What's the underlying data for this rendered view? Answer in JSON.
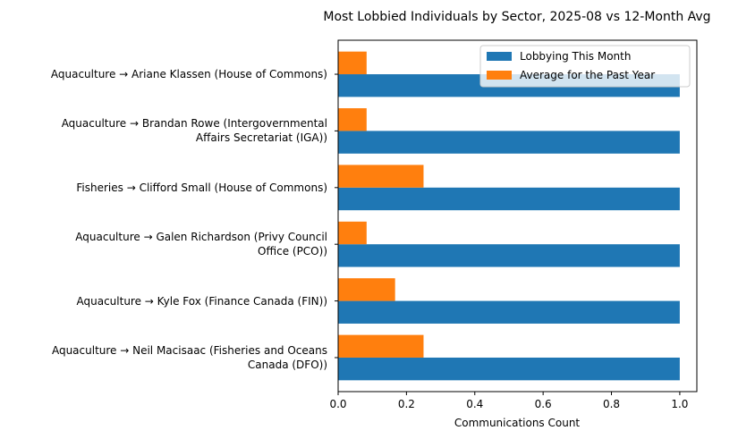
{
  "chart_data": {
    "type": "barh",
    "title": "Most Lobbied Individuals by Sector, 2025-08 vs 12-Month Avg",
    "x_label": "Communications Count",
    "categories": [
      "Aquaculture → Ariane Klassen (House of Commons)",
      "Aquaculture → Brandan Rowe (Intergovernmental\nAffairs Secretariat (IGA))",
      "Fisheries → Clifford Small (House of Commons)",
      "Aquaculture → Galen Richardson (Privy Council\nOffice (PCO))",
      "Aquaculture → Kyle Fox (Finance Canada (FIN))",
      "Aquaculture → Neil Macisaac (Fisheries and Oceans\nCanada (DFO))"
    ],
    "series": [
      {
        "name": "Lobbying This Month",
        "color": "#1f77b4",
        "values": [
          1,
          1,
          1,
          1,
          1,
          1
        ]
      },
      {
        "name": "Average for the Past Year",
        "color": "#ff7f0e",
        "values": [
          0.0833,
          0.0833,
          0.25,
          0.0833,
          0.1667,
          0.25
        ]
      }
    ],
    "xlim": [
      0,
      1.05
    ],
    "xticks": [
      {
        "value": 0,
        "label": "0.0"
      },
      0.2,
      0.4,
      0.6,
      0.8,
      {
        "value": 1,
        "label": "1.0"
      }
    ],
    "legend": "upper right"
  }
}
